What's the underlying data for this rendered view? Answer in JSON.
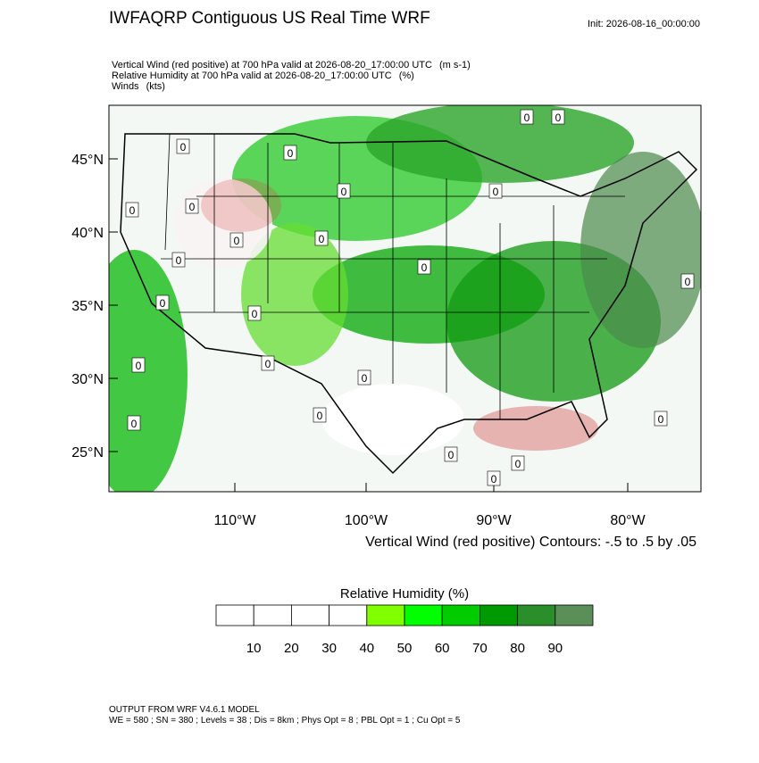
{
  "header": {
    "title": "IWFAQRP Contiguous US Real Time WRF",
    "init": "Init: 2026-08-16_00:00:00"
  },
  "fields": [
    {
      "label": "Vertical Wind (red positive) at 700 hPa valid at 2026-08-20_17:00:00 UTC",
      "units": "(m s-1)"
    },
    {
      "label": "Relative Humidity at 700 hPa valid at 2026-08-20_17:00:00 UTC",
      "units": "(%)"
    },
    {
      "label": "Winds",
      "units": "(kts)"
    }
  ],
  "map": {
    "lat_labels": [
      "45°N",
      "40°N",
      "35°N",
      "30°N",
      "25°N"
    ],
    "lon_labels": [
      "110°W",
      "100°W",
      "90°W",
      "80°W"
    ],
    "contour_note": "Vertical Wind (red positive) Contours: -.5 to .5 by .05",
    "contour_labels": [
      "0",
      "0",
      "0",
      "0",
      "0",
      "0",
      "0",
      "0",
      "0",
      "0",
      "0",
      "0",
      "0",
      "0",
      "0",
      "0",
      "0",
      "0",
      "0",
      "0",
      "0",
      "0",
      "0",
      "0"
    ]
  },
  "colorbar": {
    "title": "Relative Humidity  (%)",
    "ticks": [
      10,
      20,
      30,
      40,
      50,
      60,
      70,
      80,
      90
    ],
    "colors": [
      "#ffffff",
      "#ffffff",
      "#ffffff",
      "#ffffff",
      "#80ff00",
      "#00ff00",
      "#00cc00",
      "#009900",
      "#2a8f2a",
      "#5a8f5a"
    ]
  },
  "footer": {
    "model": "OUTPUT FROM WRF V4.6.1 MODEL",
    "settings": "WE = 580 ; SN = 380 ; Levels = 38 ; Dis = 8km ; Phys Opt = 8 ; PBL Opt = 1 ; Cu Opt = 5"
  }
}
